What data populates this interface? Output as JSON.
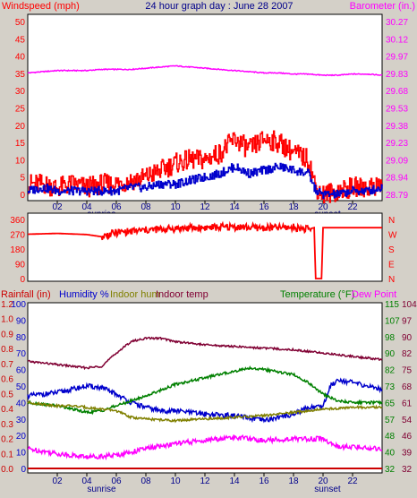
{
  "chart_data": [
    {
      "type": "line",
      "title": "24 hour graph day : June 28 2007",
      "left_axis_label": "Windspeed (mph)",
      "right_axis_label": "Barometer (in.)",
      "left_ylim": [
        0,
        50
      ],
      "left_ticks": [
        "50",
        "45",
        "40",
        "35",
        "30",
        "25",
        "20",
        "15",
        "10",
        "5",
        "0"
      ],
      "right_ylim": [
        28.79,
        30.27
      ],
      "right_ticks": [
        "30.27",
        "30.12",
        "29.97",
        "29.83",
        "29.68",
        "29.53",
        "29.38",
        "29.23",
        "29.09",
        "28.94",
        "28.79"
      ],
      "x_ticks": [
        "02",
        "04",
        "06",
        "08",
        "10",
        "12",
        "14",
        "16",
        "18",
        "20",
        "22"
      ],
      "x_annotations": [
        "sunrise",
        "sunset"
      ],
      "xlim": [
        0,
        24
      ],
      "series": [
        {
          "axis": "right",
          "color": "#ff00ff",
          "x": [
            0,
            1,
            2,
            3,
            4,
            5,
            6,
            7,
            8,
            9,
            10,
            11,
            12,
            13,
            14,
            15,
            16,
            17,
            18,
            19,
            20,
            21,
            22,
            23,
            24
          ],
          "values": [
            29.83,
            29.84,
            29.85,
            29.85,
            29.85,
            29.86,
            29.86,
            29.86,
            29.87,
            29.88,
            29.89,
            29.88,
            29.87,
            29.86,
            29.85,
            29.84,
            29.83,
            29.83,
            29.82,
            29.82,
            29.81,
            29.81,
            29.82,
            29.82,
            29.81
          ]
        },
        {
          "axis": "left",
          "color": "#ff0000",
          "x": [
            0,
            1,
            2,
            3,
            4,
            5,
            6,
            7,
            8,
            9,
            10,
            11,
            12,
            13,
            14,
            15,
            16,
            17,
            18,
            19,
            19.5,
            20,
            21,
            22,
            23,
            24
          ],
          "values": [
            3,
            3,
            2,
            3,
            2,
            3,
            3,
            4,
            5,
            7,
            9,
            10,
            10,
            12,
            16,
            13,
            16,
            15,
            12,
            10,
            2,
            0,
            1,
            2,
            2,
            3
          ]
        },
        {
          "axis": "left",
          "color": "#0000cc",
          "x": [
            0,
            1,
            2,
            3,
            4,
            5,
            6,
            7,
            8,
            9,
            10,
            11,
            12,
            13,
            14,
            15,
            16,
            17,
            18,
            19,
            19.5,
            20,
            21,
            22,
            23,
            24
          ],
          "values": [
            1,
            2,
            1,
            1,
            1,
            1,
            1,
            2,
            2,
            3,
            3,
            4,
            5,
            6,
            8,
            6,
            7,
            8,
            7,
            6,
            1,
            0,
            0,
            1,
            1,
            2
          ]
        }
      ]
    },
    {
      "type": "line",
      "left_ylim": [
        0,
        360
      ],
      "left_ticks": [
        "360",
        "270",
        "180",
        "90",
        "0"
      ],
      "right_ticks": [
        "N",
        "W",
        "S",
        "E",
        "N"
      ],
      "xlim": [
        0,
        24
      ],
      "series": [
        {
          "color": "#ff0000",
          "x": [
            0,
            2,
            4,
            5,
            6,
            8,
            10,
            12,
            14,
            16,
            18,
            19,
            19.4,
            19.5,
            19.9,
            20,
            22,
            24
          ],
          "values": [
            270,
            275,
            268,
            255,
            280,
            295,
            305,
            310,
            315,
            308,
            312,
            300,
            310,
            0,
            0,
            310,
            310,
            310
          ]
        }
      ]
    },
    {
      "type": "line",
      "left_axis_labels": [
        "Rainfall (in)",
        "Humidity %",
        "Indoor hum",
        "Indoor temp"
      ],
      "right_axis_labels": [
        "Temperature (°F)",
        "Dew Point"
      ],
      "rain_ticks": [
        "1.2",
        "1.0",
        "0.9",
        "0.8",
        "0.7",
        "0.6",
        "0.5",
        "0.4",
        "0.3",
        "0.2",
        "0.1",
        "0.0"
      ],
      "humidity_ticks": [
        "100",
        "90",
        "80",
        "70",
        "60",
        "50",
        "40",
        "30",
        "20",
        "10",
        "0"
      ],
      "humidity_ylim": [
        0,
        100
      ],
      "temp_ticks_a": [
        "115",
        "107",
        "98",
        "90",
        "82",
        "73",
        "65",
        "57",
        "48",
        "40",
        "32"
      ],
      "temp_ticks_b": [
        "104",
        "97",
        "90",
        "82",
        "75",
        "68",
        "61",
        "54",
        "46",
        "39",
        "32"
      ],
      "x_ticks": [
        "02",
        "04",
        "06",
        "08",
        "10",
        "12",
        "14",
        "16",
        "18",
        "20",
        "22"
      ],
      "x_annotations": [
        "sunrise",
        "sunset"
      ],
      "xlim": [
        0,
        24
      ],
      "series": [
        {
          "name": "Indoor temp",
          "color": "#800033",
          "x": [
            0,
            2,
            4,
            5,
            6,
            7,
            8,
            9,
            10,
            12,
            14,
            16,
            18,
            20,
            22,
            24
          ],
          "values": [
            65,
            63,
            61,
            62,
            70,
            77,
            79,
            79,
            77,
            75,
            74,
            73,
            72,
            70,
            68,
            66
          ]
        },
        {
          "name": "Humidity %",
          "color": "#0000cc",
          "x": [
            0,
            1,
            2,
            3,
            4,
            5,
            6,
            7,
            8,
            9,
            10,
            12,
            14,
            16,
            18,
            19,
            20,
            20.5,
            21,
            22,
            23,
            24
          ],
          "values": [
            44,
            45,
            46,
            48,
            50,
            49,
            45,
            40,
            37,
            35,
            35,
            33,
            32,
            29,
            33,
            37,
            38,
            50,
            54,
            52,
            50,
            48
          ]
        },
        {
          "name": "Temperature (°F)",
          "color": "#008000",
          "x": [
            0,
            2,
            4,
            5,
            6,
            8,
            10,
            12,
            14,
            15,
            16,
            18,
            19,
            20,
            21,
            22,
            24
          ],
          "values": [
            40,
            38,
            34,
            35,
            38,
            44,
            51,
            55,
            59,
            61,
            60,
            57,
            52,
            45,
            41,
            40,
            40
          ]
        },
        {
          "name": "Indoor hum",
          "color": "#808000",
          "x": [
            0,
            1,
            2,
            3,
            4,
            5,
            6,
            7,
            8,
            10,
            12,
            14,
            16,
            18,
            20,
            22,
            24
          ],
          "values": [
            40,
            39,
            38,
            38,
            37,
            36,
            35,
            31,
            30,
            29,
            30,
            31,
            32,
            34,
            36,
            37,
            37
          ]
        },
        {
          "name": "Dew Point",
          "color": "#ff00ff",
          "x": [
            0,
            2,
            4,
            6,
            8,
            10,
            12,
            14,
            16,
            18,
            20,
            21,
            22,
            24
          ],
          "values": [
            12,
            9,
            7,
            8,
            12,
            15,
            17,
            19,
            17,
            18,
            18,
            13,
            13,
            12
          ]
        },
        {
          "name": "Rainfall (in)",
          "color": "#cc0000",
          "x": [
            0,
            24
          ],
          "values": [
            0,
            0
          ]
        }
      ]
    }
  ]
}
